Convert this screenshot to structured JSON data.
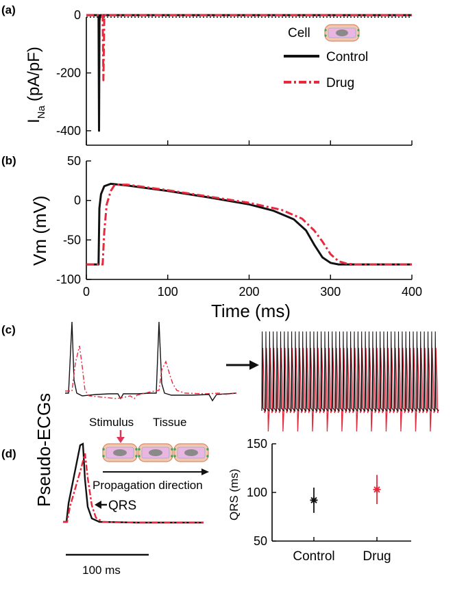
{
  "panels": {
    "a": {
      "label": "(a)"
    },
    "b": {
      "label": "(b)"
    },
    "c": {
      "label": "(c)"
    },
    "d": {
      "label": "(d)"
    }
  },
  "colors": {
    "control": "#111111",
    "drug": "#e8283c",
    "arrow_pink": "#e0345c"
  },
  "legend": {
    "cell_label": "Cell",
    "control_label": "Control",
    "drug_label": "Drug"
  },
  "pseudo_ecg_label": "Pseudo-ECGs",
  "tissue_diagram": {
    "stimulus_label": "Stimulus",
    "tissue_label": "Tissue",
    "direction_label": "Propagation direction"
  },
  "qrs_annotation": "QRS",
  "scale_bar_label": "100 ms",
  "chart_data": [
    {
      "id": "a",
      "type": "line",
      "title": "",
      "xlabel": "",
      "ylabel_main": "I",
      "ylabel_sub": "Na",
      "ylabel_unit": "(pA/pF)",
      "xlim": [
        0,
        400
      ],
      "ylim": [
        -450,
        5
      ],
      "yticks": [
        "0",
        "-200",
        "-400"
      ],
      "yticks_values": [
        0,
        -200,
        -400
      ],
      "xticks_values": [
        0,
        100,
        200,
        300,
        400
      ],
      "series": [
        {
          "name": "Control",
          "style": "solid",
          "x": [
            0,
            15,
            15.6,
            16.2,
            17,
            400
          ],
          "y": [
            0,
            0,
            -400,
            -20,
            0,
            0
          ]
        },
        {
          "name": "Drug",
          "style": "dashdot",
          "x": [
            0,
            20,
            21,
            22,
            23,
            400
          ],
          "y": [
            0,
            0,
            -225,
            -10,
            0,
            0
          ]
        }
      ]
    },
    {
      "id": "b",
      "type": "line",
      "xlabel": "Time (ms)",
      "ylabel": "Vm (mV)",
      "xlim": [
        0,
        400
      ],
      "ylim": [
        -100,
        50
      ],
      "xticks": [
        "0",
        "100",
        "200",
        "300",
        "400"
      ],
      "xticks_values": [
        0,
        100,
        200,
        300,
        400
      ],
      "yticks": [
        "50",
        "0",
        "-50",
        "-100"
      ],
      "yticks_values": [
        50,
        0,
        -50,
        -100
      ],
      "series": [
        {
          "name": "Control",
          "style": "solid",
          "x": [
            0,
            15,
            16,
            18,
            22,
            30,
            50,
            100,
            150,
            200,
            230,
            255,
            270,
            280,
            290,
            300,
            310,
            320,
            400
          ],
          "y": [
            -81,
            -81,
            -10,
            8,
            18,
            21,
            19,
            12,
            4,
            -5,
            -13,
            -24,
            -38,
            -56,
            -72,
            -79,
            -81,
            -81,
            -81
          ]
        },
        {
          "name": "Drug",
          "style": "dashdot",
          "x": [
            0,
            20,
            22,
            25,
            30,
            35,
            50,
            100,
            150,
            200,
            240,
            265,
            280,
            290,
            300,
            310,
            320,
            330,
            400
          ],
          "y": [
            -81,
            -81,
            -40,
            -5,
            12,
            20,
            20,
            13,
            5,
            -3,
            -12,
            -23,
            -38,
            -52,
            -68,
            -77,
            -80,
            -81,
            -81
          ]
        }
      ]
    }
  ],
  "qrs_chart": {
    "type": "scatter",
    "ylabel": "QRS (ms)",
    "ylim": [
      50,
      150
    ],
    "yticks": [
      "150",
      "100",
      "50"
    ],
    "yticks_values": [
      150,
      100,
      50
    ],
    "categories": [
      "Control",
      "Drug"
    ],
    "values": [
      92,
      103
    ],
    "errors": [
      13,
      15
    ]
  }
}
